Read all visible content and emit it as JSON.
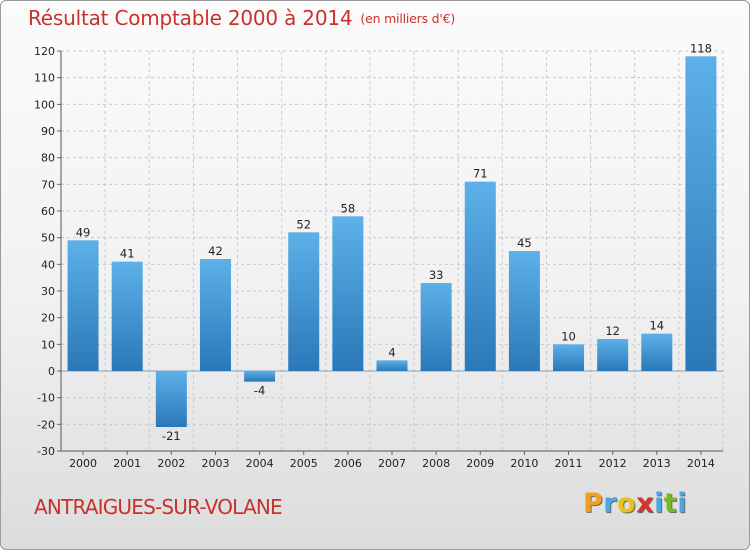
{
  "chart_data": {
    "type": "bar",
    "title": "Résultat Comptable 2000 à 2014",
    "unit": "(en milliers d'€)",
    "categories": [
      "2000",
      "2001",
      "2002",
      "2003",
      "2004",
      "2005",
      "2006",
      "2007",
      "2008",
      "2009",
      "2010",
      "2011",
      "2012",
      "2013",
      "2014"
    ],
    "values": [
      49,
      41,
      -21,
      42,
      -4,
      52,
      58,
      4,
      33,
      71,
      45,
      10,
      12,
      14,
      118
    ],
    "ylim": [
      -30,
      120
    ],
    "yticks": [
      -30,
      -20,
      -10,
      0,
      10,
      20,
      30,
      40,
      50,
      60,
      70,
      80,
      90,
      100,
      110,
      120
    ],
    "grid": true,
    "bar_color": "#3d95d4"
  },
  "footer": {
    "town": "ANTRAIGUES-SUR-VOLANE",
    "logo": [
      "P",
      "r",
      "o",
      "x",
      "i",
      "t",
      "i"
    ]
  }
}
